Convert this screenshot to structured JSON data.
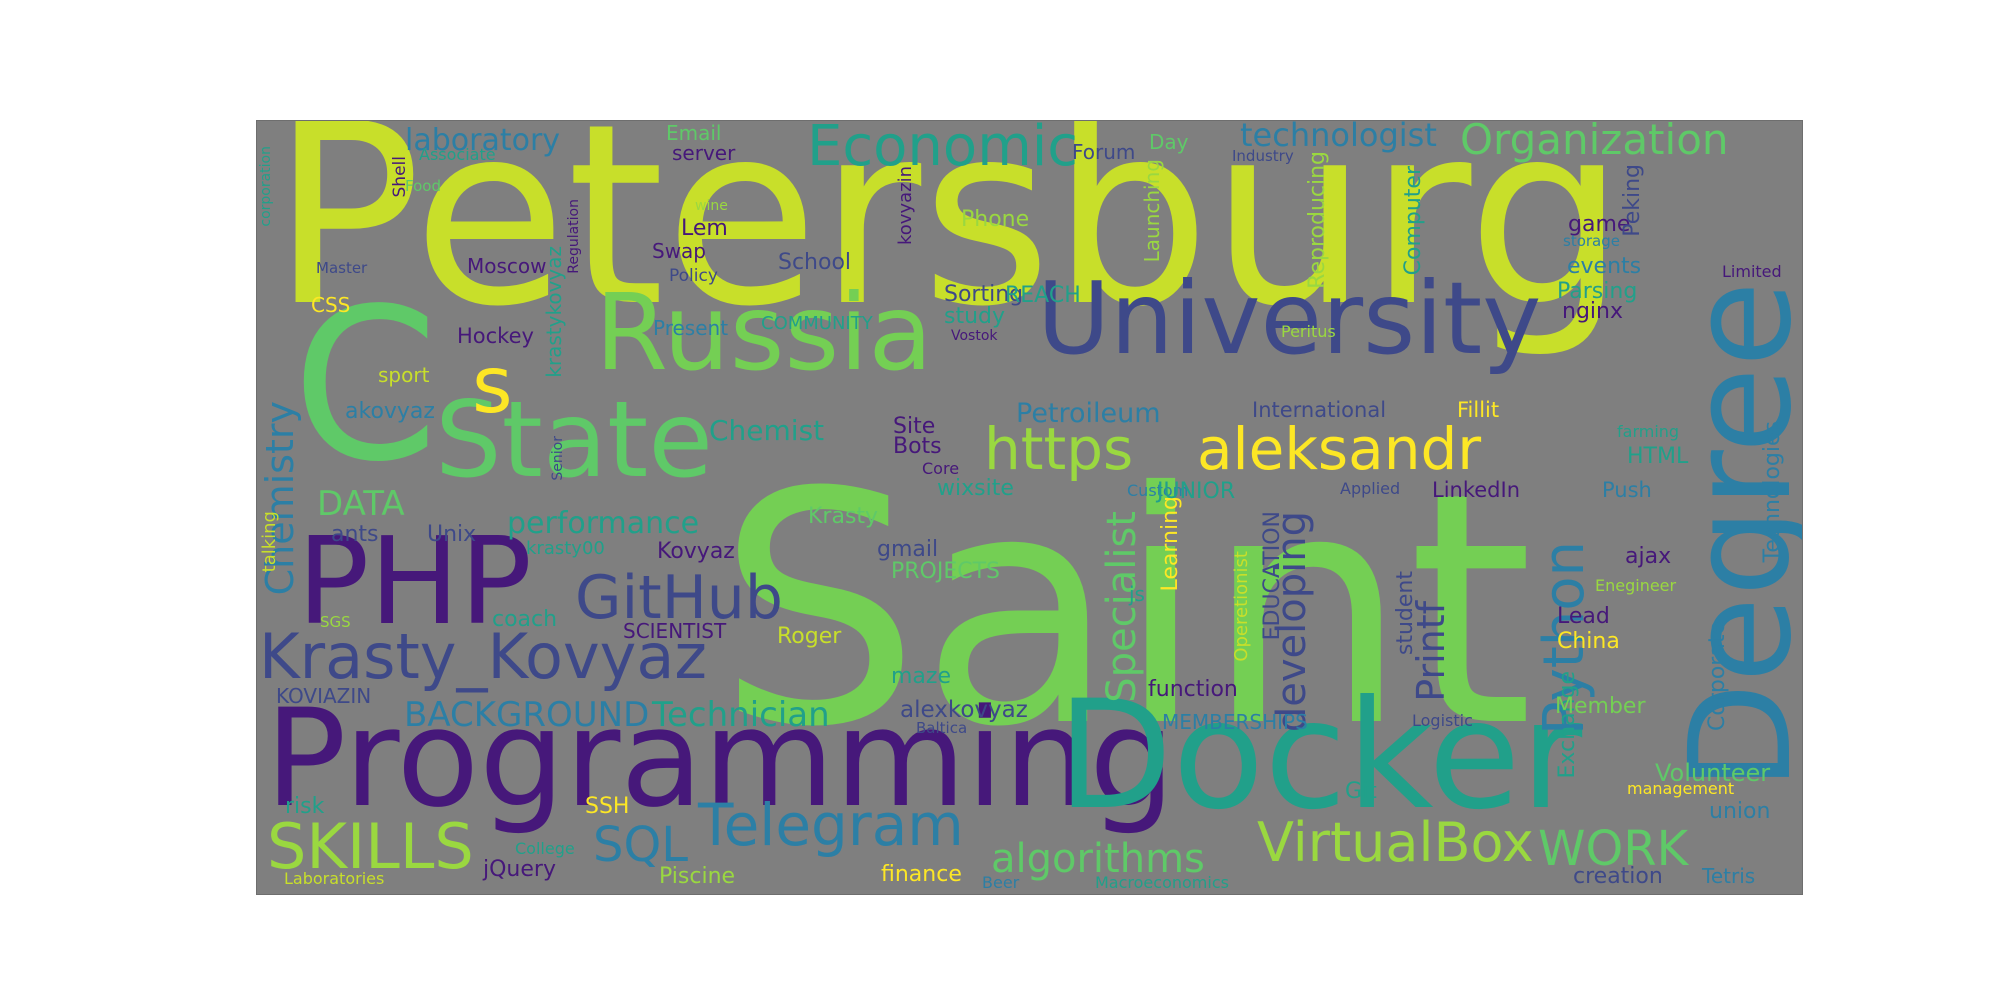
{
  "colors": {
    "background": "#7f7f7f",
    "palette": {
      "y": "#c8df2a",
      "g": "#74cf54",
      "lg": "#5fc968",
      "t": "#21a08a",
      "b": "#2c7fa5",
      "db": "#3e4989",
      "p": "#46187a",
      "lb": "#9ad840",
      "yl": "#fde725"
    }
  },
  "words": [
    {
      "text": "Petersburg",
      "color": "y"
    },
    {
      "text": "Saint",
      "color": "g"
    },
    {
      "text": "Programming",
      "color": "p"
    },
    {
      "text": "Docker",
      "color": "t"
    },
    {
      "text": "University",
      "color": "db"
    },
    {
      "text": "Russia",
      "color": "g"
    },
    {
      "text": "C",
      "color": "lg"
    },
    {
      "text": "Degree",
      "color": "b"
    },
    {
      "text": "PHP",
      "color": "p"
    },
    {
      "text": "State",
      "color": "lg"
    },
    {
      "text": "s",
      "color": "yl"
    },
    {
      "text": "https",
      "color": "lb"
    },
    {
      "text": "aleksandr",
      "color": "yl"
    },
    {
      "text": "GitHub",
      "color": "db"
    },
    {
      "text": "Krasty_Kovyaz",
      "color": "db"
    },
    {
      "text": "Economic",
      "color": "t"
    },
    {
      "text": "Telegram",
      "color": "b"
    },
    {
      "text": "VirtualBox",
      "color": "lb"
    },
    {
      "text": "SKILLS",
      "color": "lb"
    },
    {
      "text": "Organization",
      "color": "lg"
    },
    {
      "text": "Python",
      "color": "b"
    },
    {
      "text": "algorithms",
      "color": "lg"
    },
    {
      "text": "WORK",
      "color": "lg"
    },
    {
      "text": "SQL",
      "color": "b"
    },
    {
      "text": "Chemistry",
      "color": "b"
    },
    {
      "text": "technologist",
      "color": "b"
    },
    {
      "text": "BACKGROUND",
      "color": "b"
    },
    {
      "text": "Technician",
      "color": "t"
    },
    {
      "text": "Specialist",
      "color": "lg"
    },
    {
      "text": "developing",
      "color": "db"
    },
    {
      "text": "Printf",
      "color": "db"
    },
    {
      "text": "laboratory",
      "color": "b"
    },
    {
      "text": "performance",
      "color": "t"
    },
    {
      "text": "Petroileum",
      "color": "b"
    },
    {
      "text": "DATA",
      "color": "lg"
    },
    {
      "text": "Chemist",
      "color": "t"
    },
    {
      "text": "International",
      "color": "db"
    },
    {
      "text": "Fillit",
      "color": "yl"
    },
    {
      "text": "LinkedIn",
      "color": "p"
    },
    {
      "text": "Push",
      "color": "b"
    },
    {
      "text": "Technologies",
      "color": "b"
    },
    {
      "text": "Corporate",
      "color": "b"
    },
    {
      "text": "Tetris",
      "color": "b"
    },
    {
      "text": "creation",
      "color": "db"
    },
    {
      "text": "union",
      "color": "b"
    },
    {
      "text": "Volunteer",
      "color": "lg"
    },
    {
      "text": "Exchange",
      "color": "t"
    },
    {
      "text": "Member",
      "color": "g"
    },
    {
      "text": "China",
      "color": "yl"
    },
    {
      "text": "Lead",
      "color": "p"
    },
    {
      "text": "ajax",
      "color": "p"
    },
    {
      "text": "student",
      "color": "db"
    },
    {
      "text": "EDUCATION",
      "color": "db"
    },
    {
      "text": "Learning",
      "color": "yl"
    },
    {
      "text": "Operetionist",
      "color": "y"
    },
    {
      "text": "js",
      "color": "t"
    },
    {
      "text": "function",
      "color": "p"
    },
    {
      "text": "MEMBERSHIPS",
      "color": "b"
    },
    {
      "text": "alexkovyaz",
      "color": "db"
    },
    {
      "text": "Baltica",
      "color": "db"
    },
    {
      "text": "maze",
      "color": "t"
    },
    {
      "text": "Roger",
      "color": "y"
    },
    {
      "text": "SCIENTIST",
      "color": "p"
    },
    {
      "text": "PROJECTS",
      "color": "lg"
    },
    {
      "text": "gmail",
      "color": "db"
    },
    {
      "text": "Krasty",
      "color": "lg"
    },
    {
      "text": "Kovyaz",
      "color": "p"
    },
    {
      "text": "krasty00",
      "color": "t"
    },
    {
      "text": "Unix",
      "color": "db"
    },
    {
      "text": "ants",
      "color": "db"
    },
    {
      "text": "talking",
      "color": "y"
    },
    {
      "text": "SGS",
      "color": "lb"
    },
    {
      "text": "coach",
      "color": "t"
    },
    {
      "text": "KOVIAZIN",
      "color": "db"
    },
    {
      "text": "Hockey",
      "color": "p"
    },
    {
      "text": "sport",
      "color": "y"
    },
    {
      "text": "akovyaz",
      "color": "b"
    },
    {
      "text": "krastykovyaz",
      "color": "t"
    },
    {
      "text": "Senior",
      "color": "db"
    },
    {
      "text": "Moscow",
      "color": "p"
    },
    {
      "text": "CSS",
      "color": "yl"
    },
    {
      "text": "Master",
      "color": "db"
    },
    {
      "text": "Shell",
      "color": "p"
    },
    {
      "text": "Associate",
      "color": "t"
    },
    {
      "text": "Food",
      "color": "lg"
    },
    {
      "text": "corporation",
      "color": "t"
    },
    {
      "text": "Email",
      "color": "lg"
    },
    {
      "text": "server",
      "color": "p"
    },
    {
      "text": "Lem",
      "color": "p"
    },
    {
      "text": "Swap",
      "color": "p"
    },
    {
      "text": "Policy",
      "color": "db"
    },
    {
      "text": "wine",
      "color": "lb"
    },
    {
      "text": "Regulation",
      "color": "p"
    },
    {
      "text": "School",
      "color": "db"
    },
    {
      "text": "Present",
      "color": "b"
    },
    {
      "text": "COMMUNITY",
      "color": "t"
    },
    {
      "text": "Sorting",
      "color": "db"
    },
    {
      "text": "study",
      "color": "t"
    },
    {
      "text": "Vostok",
      "color": "p"
    },
    {
      "text": "kovyazin",
      "color": "p"
    },
    {
      "text": "Phone",
      "color": "lb"
    },
    {
      "text": "REACH",
      "color": "t"
    },
    {
      "text": "Forum",
      "color": "db"
    },
    {
      "text": "Day",
      "color": "lg"
    },
    {
      "text": "Launching",
      "color": "lb"
    },
    {
      "text": "Industry",
      "color": "db"
    },
    {
      "text": "Reproducing",
      "color": "lb"
    },
    {
      "text": "Computer",
      "color": "t"
    },
    {
      "text": "Peritus",
      "color": "lb"
    },
    {
      "text": "game",
      "color": "p"
    },
    {
      "text": "storage",
      "color": "b"
    },
    {
      "text": "events",
      "color": "b"
    },
    {
      "text": "Parsing",
      "color": "t"
    },
    {
      "text": "nginx",
      "color": "p"
    },
    {
      "text": "Peking",
      "color": "db"
    },
    {
      "text": "Limited",
      "color": "p"
    },
    {
      "text": "farming",
      "color": "t"
    },
    {
      "text": "HTML",
      "color": "t"
    },
    {
      "text": "Site",
      "color": "p"
    },
    {
      "text": "Bots",
      "color": "p"
    },
    {
      "text": "Core",
      "color": "p"
    },
    {
      "text": "wixsite",
      "color": "t"
    },
    {
      "text": "Custom",
      "color": "b"
    },
    {
      "text": "JUNIOR",
      "color": "t"
    },
    {
      "text": "Applied",
      "color": "db"
    },
    {
      "text": "Enegineer",
      "color": "lb"
    },
    {
      "text": "Logistic",
      "color": "db"
    },
    {
      "text": "Git",
      "color": "t"
    },
    {
      "text": "management",
      "color": "yl"
    },
    {
      "text": "risk",
      "color": "t"
    },
    {
      "text": "SSH",
      "color": "yl"
    },
    {
      "text": "College",
      "color": "t"
    },
    {
      "text": "jQuery",
      "color": "p"
    },
    {
      "text": "Piscine",
      "color": "lb"
    },
    {
      "text": "finance",
      "color": "yl"
    },
    {
      "text": "Beer",
      "color": "b"
    },
    {
      "text": "Macroeconomics",
      "color": "t"
    },
    {
      "text": "Laboratories",
      "color": "y"
    }
  ]
}
